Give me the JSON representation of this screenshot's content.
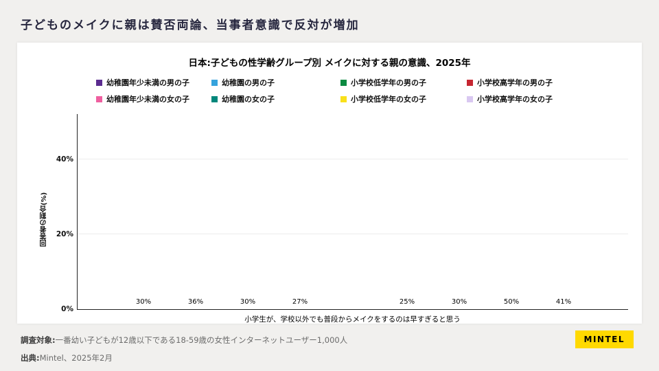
{
  "header": {
    "title": "子どものメイクに親は賛否両論、当事者意識で反対が増加"
  },
  "footer": {
    "survey_label": "調査対象:",
    "survey_text": "一番幼い子どもが12歳以下である18-59歳の女性インターネットユーザー1,000人",
    "source_label": "出典:",
    "source_text": "Mintel、2025年2月",
    "logo_text": "MINTEL",
    "logo_bg": "#ffd900"
  },
  "chart_data": {
    "type": "bar",
    "title": "日本:子どもの性学齢グループ別 メイクに対する親の意識、2025年",
    "xlabel": "小学生が、学校以外でも普段からメイクをするのは早すぎると思う",
    "ylabel": "回答者の割合(%)",
    "ylim": [
      0,
      52
    ],
    "grid": "horizontal-light",
    "legend_position": "top",
    "yticks": [
      {
        "label": "0%",
        "value": 0
      },
      {
        "label": "20%",
        "value": 20
      },
      {
        "label": "40%",
        "value": 40
      }
    ],
    "groups": [
      {
        "bars": [
          {
            "label": "幼稚園年少未満の男の子",
            "value": 30,
            "color": "#5b2c90"
          },
          {
            "label": "幼稚園の男の子",
            "value": 36,
            "color": "#36a3dd"
          },
          {
            "label": "小学校低学年の男の子",
            "value": 30,
            "color": "#0c8a41"
          },
          {
            "label": "小学校高学年の男の子",
            "value": 27,
            "color": "#c62631"
          }
        ]
      },
      {
        "bars": [
          {
            "label": "幼稚園年少未満の女の子",
            "value": 25,
            "color": "#ef5fa0"
          },
          {
            "label": "幼稚園の女の子",
            "value": 30,
            "color": "#00877b"
          },
          {
            "label": "小学校低学年の女の子",
            "value": 50,
            "color": "#f9e01b"
          },
          {
            "label": "小学校高学年の女の子",
            "value": 41,
            "color": "#d9c8f1"
          }
        ]
      }
    ]
  }
}
